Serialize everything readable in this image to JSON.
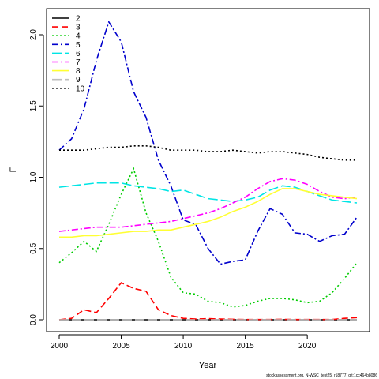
{
  "chart_data": {
    "type": "line",
    "title": "",
    "xlabel": "Year",
    "ylabel": "F",
    "xlim": [
      2000,
      2024
    ],
    "ylim": [
      0,
      2.1
    ],
    "x_ticks": [
      2000,
      2005,
      2010,
      2015,
      2020
    ],
    "y_ticks": [
      0.0,
      0.5,
      1.0,
      1.5,
      2.0
    ],
    "y_tick_labels": [
      "0.0",
      "0.5",
      "1.0",
      "1.5",
      "2.0"
    ],
    "grid": false,
    "legend_position": "top-left",
    "x": [
      2000,
      2001,
      2002,
      2003,
      2004,
      2005,
      2006,
      2007,
      2008,
      2009,
      2010,
      2011,
      2012,
      2013,
      2014,
      2015,
      2016,
      2017,
      2018,
      2019,
      2020,
      2021,
      2022,
      2023,
      2024
    ],
    "series": [
      {
        "name": "2",
        "color": "#000000",
        "dash": "solid",
        "values": [
          0,
          0,
          0,
          0,
          0,
          0,
          0,
          0,
          0,
          0,
          0,
          0,
          0,
          0,
          0,
          0,
          0,
          0,
          0,
          0,
          0,
          0,
          0,
          0,
          0
        ]
      },
      {
        "name": "3",
        "color": "#ff0000",
        "dash": "8,4",
        "values": [
          0.0,
          0.01,
          0.07,
          0.05,
          0.15,
          0.26,
          0.22,
          0.2,
          0.07,
          0.03,
          0.01,
          0.005,
          0.008,
          0.005,
          0.003,
          0.002,
          0.002,
          0.002,
          0.003,
          0.002,
          0.002,
          0.002,
          0.002,
          0.01,
          0.015
        ]
      },
      {
        "name": "4",
        "color": "#00cc00",
        "dash": "2,3",
        "values": [
          0.4,
          0.47,
          0.55,
          0.48,
          0.67,
          0.88,
          1.06,
          0.75,
          0.55,
          0.3,
          0.19,
          0.18,
          0.13,
          0.12,
          0.09,
          0.1,
          0.13,
          0.15,
          0.15,
          0.14,
          0.12,
          0.13,
          0.19,
          0.29,
          0.4
        ]
      },
      {
        "name": "5",
        "color": "#0000cc",
        "dash": "8,3,2,3",
        "values": [
          1.19,
          1.27,
          1.48,
          1.82,
          2.09,
          1.95,
          1.6,
          1.42,
          1.12,
          0.94,
          0.7,
          0.67,
          0.5,
          0.39,
          0.41,
          0.42,
          0.62,
          0.78,
          0.74,
          0.61,
          0.6,
          0.55,
          0.59,
          0.6,
          0.72
        ]
      },
      {
        "name": "6",
        "color": "#00e5e5",
        "dash": "12,4",
        "values": [
          0.93,
          0.94,
          0.95,
          0.96,
          0.96,
          0.96,
          0.94,
          0.93,
          0.92,
          0.9,
          0.91,
          0.88,
          0.85,
          0.84,
          0.83,
          0.84,
          0.86,
          0.91,
          0.94,
          0.93,
          0.9,
          0.87,
          0.84,
          0.83,
          0.82
        ]
      },
      {
        "name": "7",
        "color": "#ff00ff",
        "dash": "8,3,2,3",
        "values": [
          0.62,
          0.63,
          0.64,
          0.65,
          0.65,
          0.65,
          0.66,
          0.67,
          0.68,
          0.69,
          0.71,
          0.73,
          0.75,
          0.78,
          0.82,
          0.86,
          0.92,
          0.97,
          0.99,
          0.98,
          0.95,
          0.9,
          0.86,
          0.85,
          0.86
        ]
      },
      {
        "name": "8",
        "color": "#ffff33",
        "dash": "solid",
        "values": [
          0.58,
          0.58,
          0.59,
          0.59,
          0.6,
          0.61,
          0.62,
          0.62,
          0.63,
          0.63,
          0.65,
          0.67,
          0.69,
          0.72,
          0.76,
          0.79,
          0.83,
          0.88,
          0.92,
          0.92,
          0.9,
          0.88,
          0.87,
          0.86,
          0.85
        ]
      },
      {
        "name": "9",
        "color": "#bebebe",
        "dash": "12,4",
        "values": [
          0,
          0,
          0,
          0,
          0,
          0,
          0,
          0,
          0,
          0,
          0,
          0,
          0,
          0,
          0,
          0,
          0,
          0,
          0,
          0,
          0,
          0,
          0,
          0,
          0
        ]
      },
      {
        "name": "10",
        "color": "#000000",
        "dash": "2,3",
        "values": [
          1.19,
          1.19,
          1.19,
          1.2,
          1.21,
          1.21,
          1.22,
          1.22,
          1.21,
          1.19,
          1.19,
          1.19,
          1.18,
          1.18,
          1.19,
          1.18,
          1.17,
          1.18,
          1.18,
          1.17,
          1.16,
          1.14,
          1.13,
          1.12,
          1.12
        ]
      }
    ]
  },
  "footnote": "stockassessment.org, N-WSC_test25, r18777, git:1cc464b8086"
}
